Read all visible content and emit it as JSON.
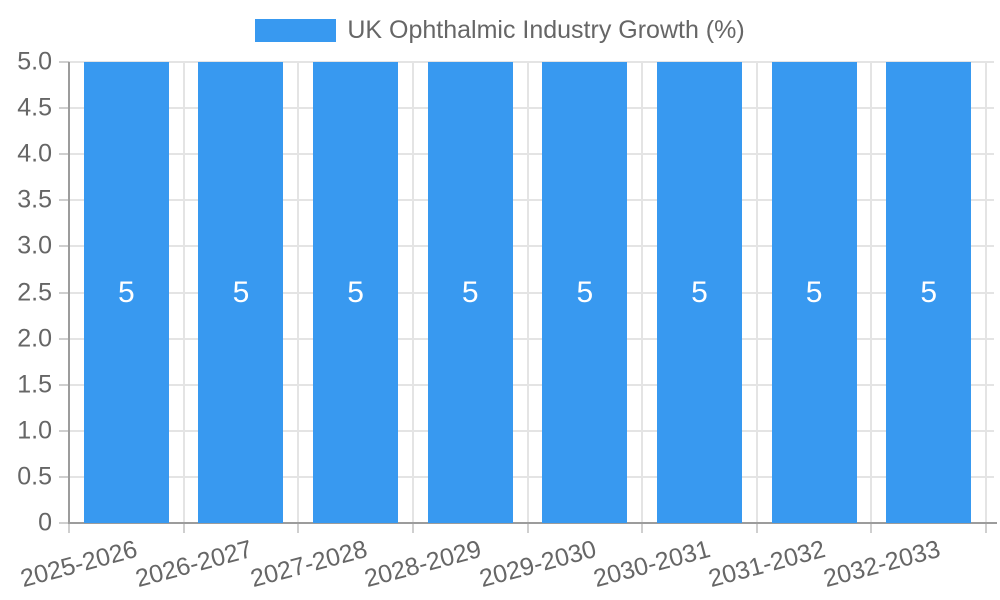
{
  "chart": {
    "legend": {
      "label": "UK Ophthalmic Industry Growth (%)",
      "position": "top"
    },
    "colors": {
      "bar": "#3899F0",
      "grid": "#E4E4E4",
      "tick_mark": "#CFCFCF",
      "axis": "#9C9C9C",
      "tick_text": "#666666",
      "value_label": "#FFFFFF"
    }
  },
  "chart_data": {
    "type": "bar",
    "title": "UK Ophthalmic Industry Growth (%)",
    "series": [
      {
        "name": "UK Ophthalmic Industry Growth (%)",
        "values": [
          5,
          5,
          5,
          5,
          5,
          5,
          5,
          5
        ]
      }
    ],
    "categories": [
      "2025-2026",
      "2026-2027",
      "2027-2028",
      "2028-2029",
      "2029-2030",
      "2030-2031",
      "2031-2032",
      "2032-2033"
    ],
    "value_labels": [
      "5",
      "5",
      "5",
      "5",
      "5",
      "5",
      "5",
      "5"
    ],
    "xlabel": "",
    "ylabel": "",
    "ylim": [
      0,
      5
    ],
    "ytick_step": 0.5,
    "ytick_labels": [
      "5.0",
      "4.5",
      "4.0",
      "3.5",
      "3.0",
      "2.5",
      "2.0",
      "1.5",
      "1.0",
      "0.5",
      "0"
    ],
    "grid": true,
    "legend_position": "top",
    "x_tick_rotation_deg": -15,
    "bar_color": "#3899F0",
    "value_label_color": "#FFFFFF"
  }
}
